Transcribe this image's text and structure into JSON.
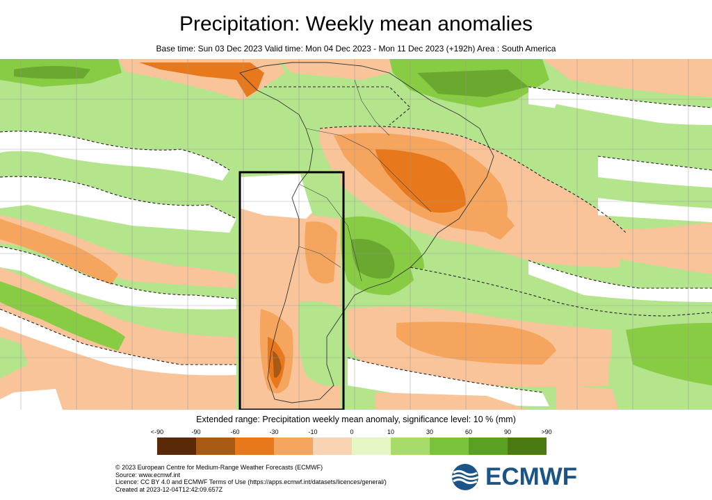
{
  "title": "Precipitation: Weekly mean anomalies",
  "subtitle": "Base time: Sun 03 Dec 2023 Valid time: Mon 04 Dec 2023 - Mon 11 Dec 2023 (+192h) Area : South America",
  "legend": {
    "title": "Extended range: Precipitation weekly mean anomaly, significance level: 10 % (mm)",
    "ticks": [
      "<-90",
      "-90",
      "-60",
      "-30",
      "-10",
      "0",
      "10",
      "30",
      "60",
      "90",
      ">90"
    ],
    "colors": [
      "#5a2a08",
      "#a85a14",
      "#e8781c",
      "#f5a55e",
      "#fad3b2",
      "#e5f5c4",
      "#a8dc6a",
      "#7ac43c",
      "#5aa022",
      "#4a7a10"
    ]
  },
  "map": {
    "colors": {
      "ocean_green": "#b4e48c",
      "strong_green": "#88cc44",
      "dark_green": "#6aa830",
      "light_orange": "#f9c49a",
      "orange": "#f5a55e",
      "dark_orange": "#e8781c",
      "neutral": "#ffffff",
      "grid": "#a0a0a0",
      "coast": "#333333",
      "highlight_box": "#000000"
    }
  },
  "credits": [
    "© 2023 European Centre for Medium-Range Weather Forecasts (ECMWF)",
    "Source: www.ecmwf.int",
    "Licence: CC BY 4.0 and ECMWF Terms of Use (https://apps.ecmwf.int/datasets/licences/general/)",
    "Created at 2023-12-04T12:42:09.657Z"
  ],
  "logo": {
    "text": "ECMWF",
    "color": "#1b5487"
  }
}
